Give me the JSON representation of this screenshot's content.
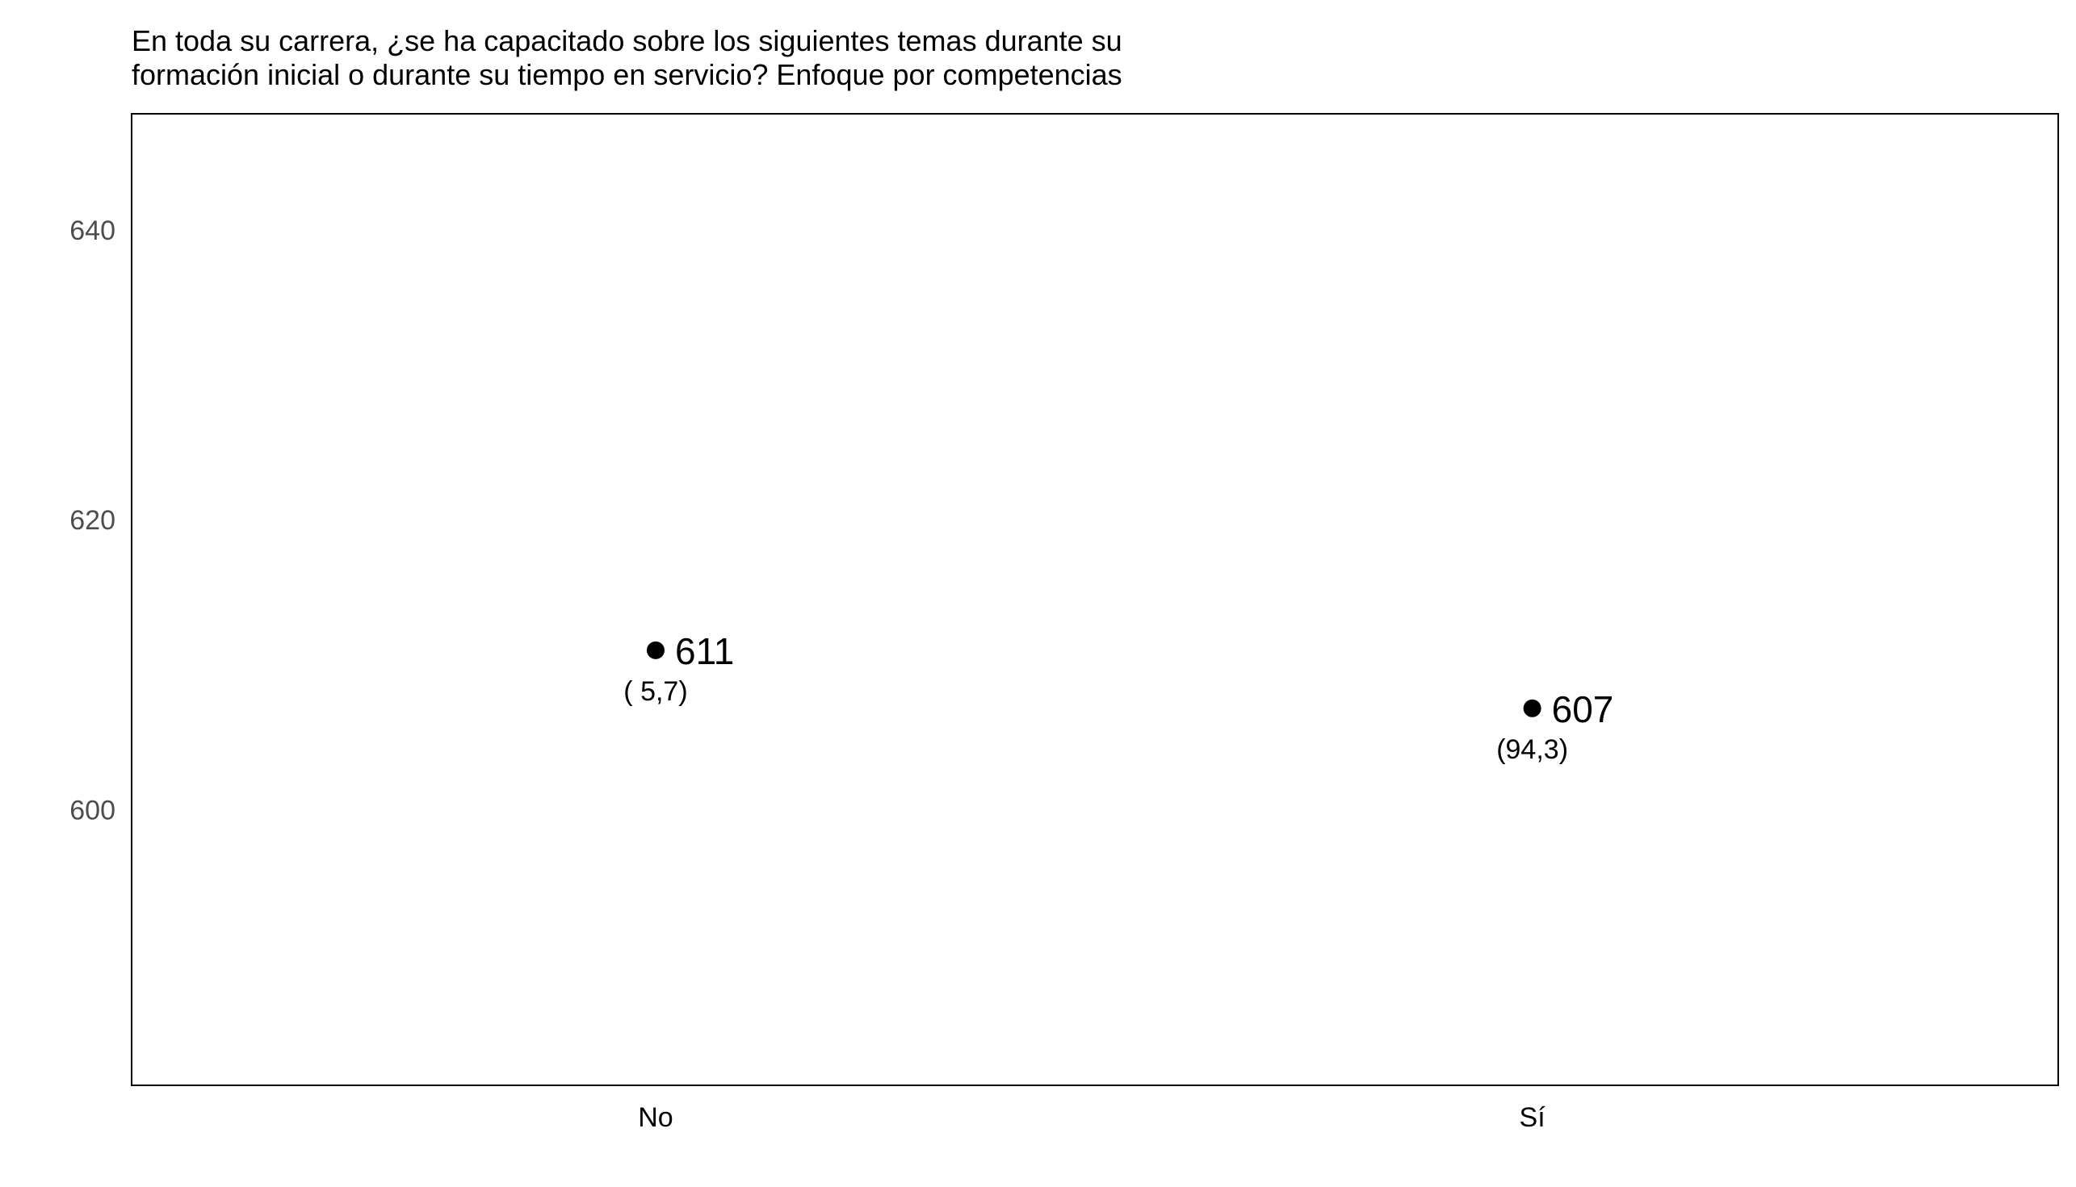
{
  "chart_data": {
    "type": "scatter",
    "title_lines": [
      "En toda su carrera, ¿se ha capacitado sobre los siguientes temas durante su",
      "formación inicial o durante su tiempo en servicio? Enfoque por competencias"
    ],
    "xlabel": "",
    "ylabel": "",
    "categories": [
      "No",
      "Sí"
    ],
    "values": [
      611,
      607
    ],
    "value_labels": [
      "611",
      "607"
    ],
    "percent_labels": [
      "( 5,7)",
      "(94,3)"
    ],
    "ylim": [
      581,
      648
    ],
    "yticks": [
      600,
      620,
      640
    ],
    "grid": false,
    "legend": "none",
    "point_color": "#000000"
  }
}
